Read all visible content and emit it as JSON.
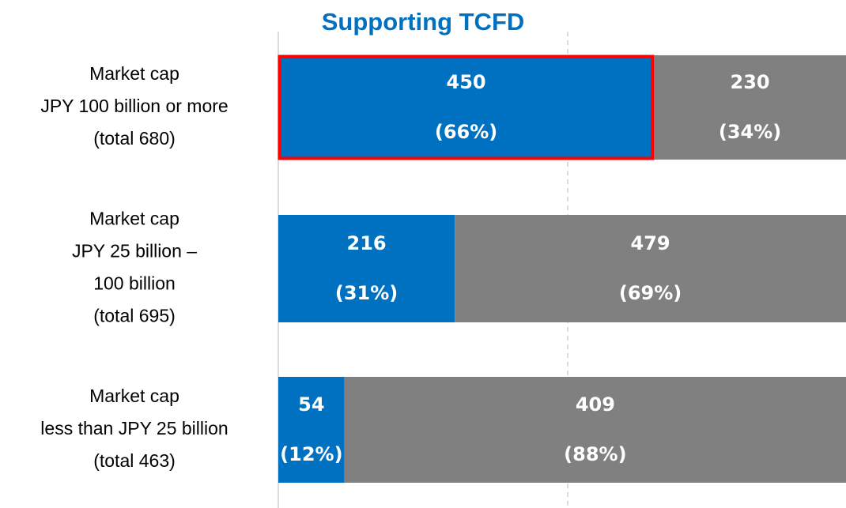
{
  "chart_data": {
    "type": "stacked-bar-horizontal-100",
    "categories": [
      [
        "Market cap",
        "JPY 100 billion or more",
        "(total 680)"
      ],
      [
        "Market cap",
        "JPY 25 billion –",
        "100 billion",
        "(total 695)"
      ],
      [
        "Market cap",
        "less than JPY 25 billion",
        "(total 463)"
      ]
    ],
    "series": [
      {
        "name": "Supporting TCFD",
        "color": "#0070c0",
        "values": [
          450,
          216,
          54
        ],
        "shares": [
          66,
          31,
          12
        ],
        "share_labels": [
          "(66%)",
          "(31%)",
          "(12%)"
        ]
      },
      {
        "color": "#808080",
        "values": [
          230,
          479,
          409
        ],
        "shares": [
          34,
          69,
          88
        ],
        "share_labels": [
          "(34%)",
          "(69%)",
          "(88%)"
        ]
      }
    ]
  }
}
